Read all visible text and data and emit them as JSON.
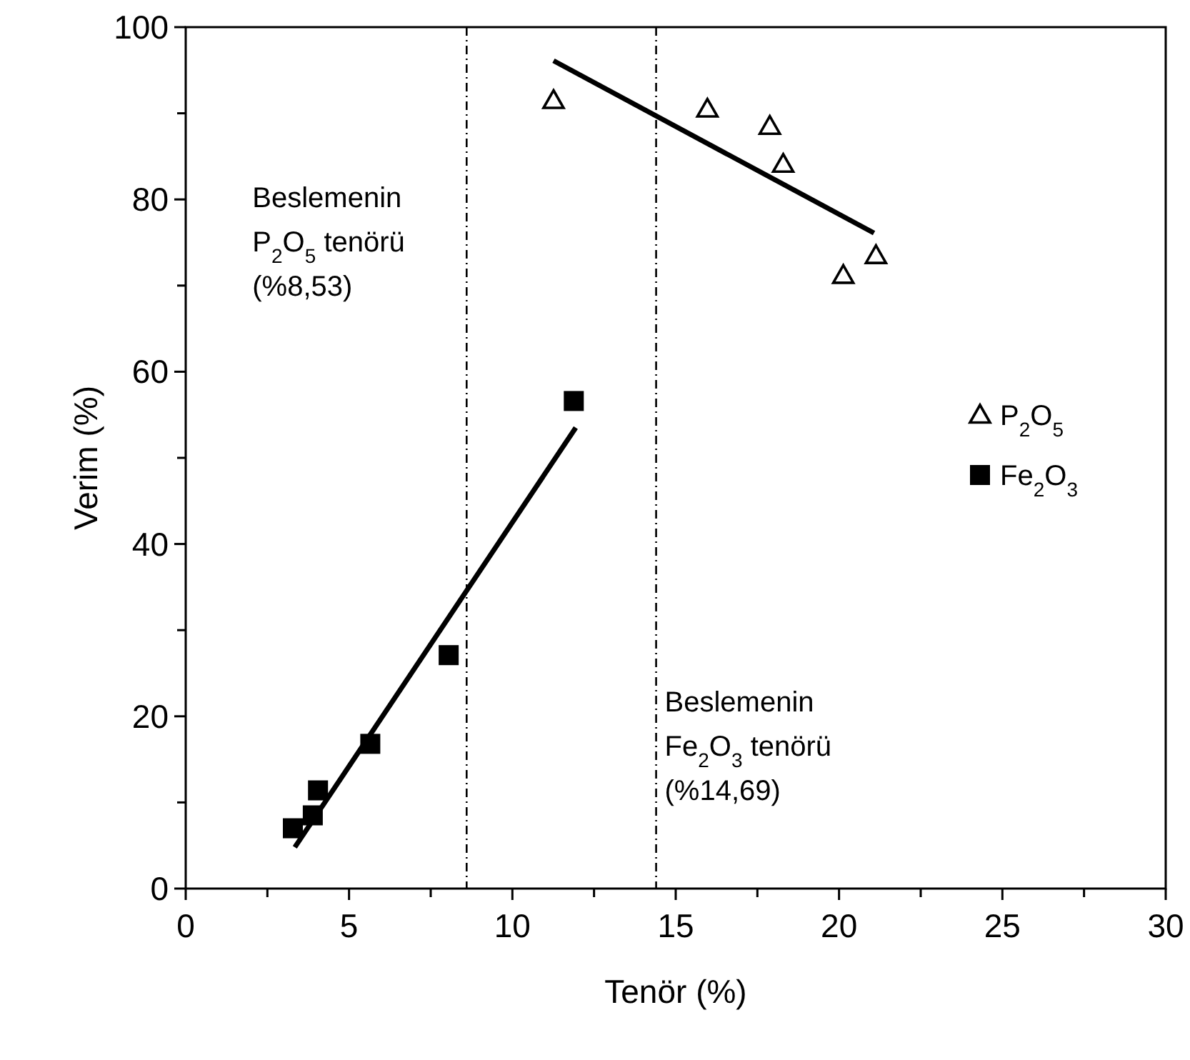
{
  "chart_data": {
    "type": "scatter",
    "xlabel": "Tenör (%)",
    "ylabel": "Verim (%)",
    "xlim": [
      0,
      30
    ],
    "ylim": [
      0,
      100
    ],
    "xticks": [
      0,
      {
        "value": 2.5,
        "label": null
      },
      5,
      {
        "value": 7.5,
        "label": null
      },
      10,
      {
        "value": 12.5,
        "label": null
      },
      15,
      {
        "value": 17.5,
        "label": null
      },
      20,
      {
        "value": 22.5,
        "label": null
      },
      25,
      {
        "value": 27.5,
        "label": null
      },
      30
    ],
    "yticks": [
      0,
      {
        "value": 10,
        "label": null
      },
      20,
      {
        "value": 30,
        "label": null
      },
      40,
      {
        "value": 50,
        "label": null
      },
      60,
      {
        "value": 70,
        "label": null
      },
      80,
      {
        "value": 90,
        "label": null
      },
      100
    ],
    "grid": false,
    "legend": "right",
    "series": [
      {
        "name": "P$_{2}$O$_{5}$",
        "marker": "triangle",
        "color": "#000000",
        "x": [
          11.26,
          15.97,
          17.88,
          18.29,
          20.13,
          21.13
        ],
        "values": [
          91.5,
          90.5,
          88.5,
          84.1,
          71.2,
          73.5
        ]
      },
      {
        "name": "Fe$_{2}$O$_{3}$",
        "marker": "square",
        "color": "#000000",
        "x": [
          3.28,
          3.89,
          4.05,
          5.65,
          8.05,
          11.88
        ],
        "values": [
          7.0,
          8.5,
          11.4,
          16.8,
          27.1,
          56.6
        ]
      },
      {
        "type": "line",
        "color": "#000000",
        "line_style": "solid",
        "x": [
          11.26,
          21.07
        ],
        "values": [
          96.1,
          76.1
        ]
      },
      {
        "type": "line",
        "color": "#000000",
        "line_style": "solid",
        "x": [
          3.34,
          11.94
        ],
        "values": [
          4.8,
          53.5
        ]
      }
    ],
    "ref_lines": [
      {
        "axis": "x",
        "value": 8.6,
        "label": "Beslemenin\nP$_{2}$O$_{5}$ tenörü\n(%8,53)",
        "line_style": "dashdot",
        "color": "#000000"
      },
      {
        "axis": "x",
        "value": 14.4,
        "label": "Beslemenin\nFe$_{2}$O$_{3}$ tenörü\n(%14,69)",
        "line_style": "dashdot",
        "color": "#000000"
      }
    ]
  }
}
